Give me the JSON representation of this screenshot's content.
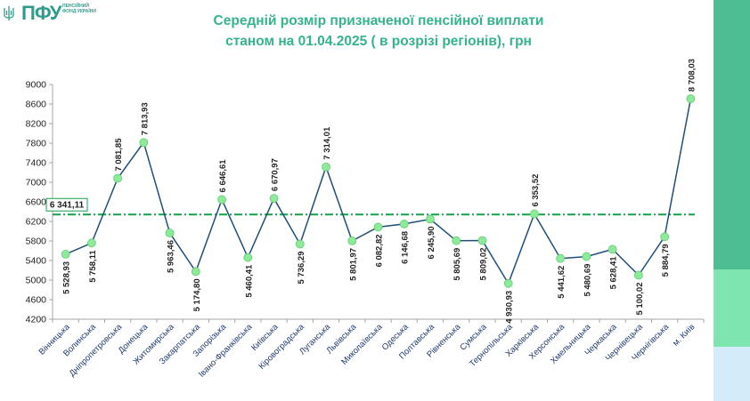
{
  "logo": {
    "brand": "ПФУ",
    "sub": "ПЕНСІЙНИЙ ФОНД УКРАЇНИ",
    "icon": "trident-icon"
  },
  "header": {
    "title_line1": "Середній розмір призначеної пенсійної виплати",
    "title_line2": "станом на 01.04.2025 ( в розрізі регіонів), грн"
  },
  "colors": {
    "title": "#35b38c",
    "line": "#1f4e79",
    "marker": "#8ee99a",
    "average_line": "#14a04a",
    "sidebar": [
      "#4dbd94",
      "#7ee4b0",
      "#d4ecfa"
    ]
  },
  "chart_data": {
    "type": "line",
    "title": "Середній розмір призначеної пенсійної виплати станом на 01.04.2025 ( в розрізі регіонів), грн",
    "categories": [
      "Вінницька",
      "Волинська",
      "Дніпропетровська",
      "Донецька",
      "Житомирська",
      "Закарпатська",
      "Запорізька",
      "Івано-Франківська",
      "Київська",
      "Кіровоградська",
      "Луганська",
      "Львівська",
      "Миколаївська",
      "Одеська",
      "Полтавська",
      "Рівненська",
      "Сумська",
      "Тернопільська",
      "Харківська",
      "Херсонська",
      "Хмельницька",
      "Черкаська",
      "Чернівецька",
      "Чернігівська",
      "м. Київ"
    ],
    "values": [
      5528.93,
      5758.11,
      7081.85,
      7813.93,
      5963.46,
      5174.8,
      6646.61,
      5460.41,
      6670.97,
      5736.29,
      7314.01,
      5801.97,
      6082.82,
      6146.68,
      6245.9,
      5805.69,
      5809.02,
      4930.93,
      6353.52,
      5441.62,
      5480.69,
      5628.41,
      5100.02,
      5884.79,
      8708.03
    ],
    "value_labels": [
      "5 528,93",
      "5 758,11",
      "7 081,85",
      "7 813,93",
      "5 963,46",
      "5 174,80",
      "6 646,61",
      "5 460,41",
      "6 670,97",
      "5 736,29",
      "7 314,01",
      "5 801,97",
      "6 082,82",
      "6 146,68",
      "6 245,90",
      "5 805,69",
      "5 809,02",
      "4 930,93",
      "6 353,52",
      "5 441,62",
      "5 480,69",
      "5 628,41",
      "5 100,02",
      "5 884,79",
      "8 708,03"
    ],
    "label_position": [
      "below",
      "below",
      "above",
      "above",
      "below",
      "below",
      "above",
      "below",
      "above",
      "below",
      "above",
      "below",
      "below",
      "below",
      "below",
      "below",
      "below",
      "below",
      "above",
      "below",
      "below",
      "below",
      "below",
      "below",
      "above"
    ],
    "average": {
      "value": 6341.11,
      "label": "6 341,11"
    },
    "ylim": [
      4200,
      9000
    ],
    "yticks": [
      4200,
      4600,
      5000,
      5400,
      5800,
      6200,
      6600,
      7000,
      7400,
      7800,
      8200,
      8600,
      9000
    ],
    "xlabel": "",
    "ylabel": "",
    "grid": false,
    "legend": "none"
  }
}
